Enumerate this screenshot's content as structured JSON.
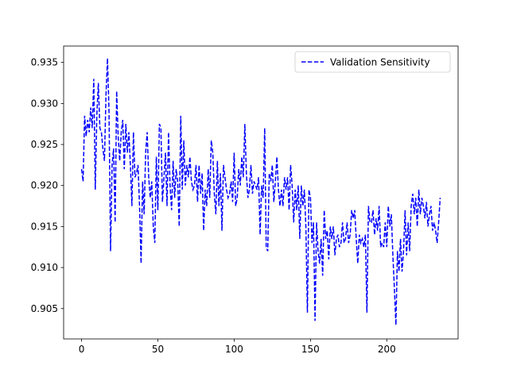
{
  "chart_data": {
    "type": "line",
    "x": [
      0,
      1,
      2,
      3,
      4,
      5,
      6,
      7,
      8,
      9,
      10,
      11,
      12,
      13,
      14,
      15,
      16,
      17,
      18,
      19,
      20,
      21,
      22,
      23,
      24,
      25,
      26,
      27,
      28,
      29,
      30,
      31,
      32,
      33,
      34,
      35,
      36,
      37,
      38,
      39,
      40,
      41,
      42,
      43,
      44,
      45,
      46,
      47,
      48,
      49,
      50,
      51,
      52,
      53,
      54,
      55,
      56,
      57,
      58,
      59,
      60,
      61,
      62,
      63,
      64,
      65,
      66,
      67,
      68,
      69,
      70,
      71,
      72,
      73,
      74,
      75,
      76,
      77,
      78,
      79,
      80,
      81,
      82,
      83,
      84,
      85,
      86,
      87,
      88,
      89,
      90,
      91,
      92,
      93,
      94,
      95,
      96,
      97,
      98,
      99,
      100,
      101,
      102,
      103,
      104,
      105,
      106,
      107,
      108,
      109,
      110,
      111,
      112,
      113,
      114,
      115,
      116,
      117,
      118,
      119,
      120,
      121,
      122,
      123,
      124,
      125,
      126,
      127,
      128,
      129,
      130,
      131,
      132,
      133,
      134,
      135,
      136,
      137,
      138,
      139,
      140,
      141,
      142,
      143,
      144,
      145,
      146,
      147,
      148,
      149,
      150,
      151,
      152,
      153,
      154,
      155,
      156,
      157,
      158,
      159,
      160,
      161,
      162,
      163,
      164,
      165,
      166,
      167,
      168,
      169,
      170,
      171,
      172,
      173,
      174,
      175,
      176,
      177,
      178,
      179,
      180,
      181,
      182,
      183,
      184,
      185,
      186,
      187,
      188,
      189,
      190,
      191,
      192,
      193,
      194,
      195,
      196,
      197,
      198,
      199,
      200,
      201,
      202,
      203,
      204,
      205,
      206,
      207,
      208,
      209,
      210,
      211,
      212,
      213,
      214,
      215,
      216,
      217,
      218,
      219,
      220,
      221,
      222,
      223,
      224,
      225,
      226,
      227,
      228,
      229,
      230,
      231,
      232,
      233,
      234,
      235
    ],
    "series": [
      {
        "name": "Validation Sensitivity",
        "color": "#0000ff",
        "dash": true,
        "values": [
          0.922,
          0.9205,
          0.9285,
          0.926,
          0.928,
          0.9265,
          0.9295,
          0.927,
          0.933,
          0.9195,
          0.9285,
          0.9325,
          0.927,
          0.9265,
          0.9245,
          0.923,
          0.931,
          0.9355,
          0.929,
          0.912,
          0.9225,
          0.9245,
          0.9155,
          0.9315,
          0.926,
          0.923,
          0.9265,
          0.928,
          0.922,
          0.9275,
          0.924,
          0.9265,
          0.9225,
          0.9175,
          0.9265,
          0.921,
          0.9215,
          0.9225,
          0.9175,
          0.9105,
          0.9205,
          0.9165,
          0.924,
          0.9265,
          0.921,
          0.9185,
          0.9205,
          0.915,
          0.913,
          0.9235,
          0.917,
          0.9275,
          0.927,
          0.918,
          0.921,
          0.924,
          0.9175,
          0.9265,
          0.92,
          0.917,
          0.923,
          0.9185,
          0.922,
          0.9205,
          0.915,
          0.9285,
          0.9195,
          0.9255,
          0.92,
          0.9225,
          0.921,
          0.9235,
          0.9205,
          0.9195,
          0.92,
          0.9225,
          0.918,
          0.9225,
          0.919,
          0.9215,
          0.9145,
          0.9195,
          0.9175,
          0.922,
          0.9185,
          0.9255,
          0.924,
          0.919,
          0.9165,
          0.923,
          0.9175,
          0.9215,
          0.9145,
          0.9225,
          0.921,
          0.9195,
          0.9185,
          0.919,
          0.9205,
          0.918,
          0.924,
          0.9175,
          0.9185,
          0.922,
          0.92,
          0.9235,
          0.921,
          0.9275,
          0.9215,
          0.9185,
          0.9195,
          0.9225,
          0.919,
          0.9205,
          0.92,
          0.9195,
          0.921,
          0.914,
          0.92,
          0.9185,
          0.927,
          0.9125,
          0.912,
          0.9215,
          0.9205,
          0.9225,
          0.918,
          0.9205,
          0.9235,
          0.9195,
          0.9175,
          0.9195,
          0.9175,
          0.921,
          0.9195,
          0.921,
          0.917,
          0.9225,
          0.92,
          0.9155,
          0.9195,
          0.917,
          0.92,
          0.9135,
          0.92,
          0.9175,
          0.9195,
          0.915,
          0.9045,
          0.9195,
          0.9185,
          0.913,
          0.9155,
          0.9035,
          0.9155,
          0.912,
          0.9105,
          0.9135,
          0.909,
          0.917,
          0.9135,
          0.9145,
          0.911,
          0.915,
          0.9135,
          0.915,
          0.9115,
          0.9135,
          0.914,
          0.9125,
          0.913,
          0.9155,
          0.913,
          0.9135,
          0.9155,
          0.913,
          0.914,
          0.917,
          0.916,
          0.917,
          0.9135,
          0.9105,
          0.914,
          0.913,
          0.9135,
          0.9125,
          0.914,
          0.9045,
          0.9175,
          0.9155,
          0.9155,
          0.917,
          0.914,
          0.916,
          0.9145,
          0.9175,
          0.9125,
          0.913,
          0.9125,
          0.9155,
          0.9125,
          0.9175,
          0.915,
          0.9165,
          0.9115,
          0.9075,
          0.903,
          0.912,
          0.9095,
          0.9135,
          0.9095,
          0.912,
          0.917,
          0.9115,
          0.9155,
          0.912,
          0.9175,
          0.919,
          0.9165,
          0.9185,
          0.915,
          0.9195,
          0.9165,
          0.9185,
          0.9175,
          0.916,
          0.918,
          0.915,
          0.9165,
          0.9175,
          0.9145,
          0.9155,
          0.9145,
          0.913,
          0.9155,
          0.9185
        ]
      }
    ],
    "xlim": [
      -11.75,
      246.75
    ],
    "xticks": [
      0,
      50,
      100,
      150,
      200
    ],
    "ylim": [
      0.9013,
      0.937
    ],
    "yticks": [
      0.905,
      {
        "value": 0.91,
        "label": "0.910"
      },
      0.915,
      {
        "value": 0.92,
        "label": "0.920"
      },
      0.925,
      {
        "value": 0.93,
        "label": "0.930"
      },
      0.935
    ],
    "grid": false,
    "legend": "upper right"
  }
}
